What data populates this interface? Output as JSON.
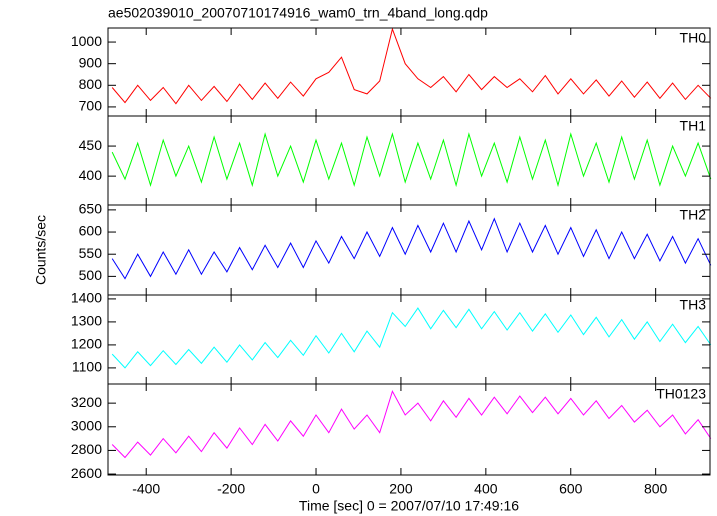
{
  "chart_data": [
    {
      "type": "line",
      "title": "ae502039010_20070710174916_wam0_trn_4band_long.qdp",
      "x": [
        -480,
        -450,
        -420,
        -390,
        -360,
        -330,
        -300,
        -270,
        -240,
        -210,
        -180,
        -150,
        -120,
        -90,
        -60,
        -30,
        0,
        30,
        60,
        90,
        120,
        150,
        180,
        210,
        240,
        270,
        300,
        330,
        360,
        390,
        420,
        450,
        480,
        510,
        540,
        570,
        600,
        630,
        660,
        690,
        720,
        750,
        780,
        810,
        840,
        870,
        900,
        930
      ],
      "series": [
        {
          "name": "TH0",
          "color": "#ff0000",
          "values": [
            790,
            720,
            800,
            730,
            790,
            715,
            800,
            730,
            795,
            725,
            805,
            735,
            810,
            740,
            815,
            750,
            830,
            860,
            930,
            780,
            760,
            820,
            1060,
            900,
            830,
            790,
            840,
            770,
            850,
            780,
            840,
            790,
            830,
            770,
            845,
            760,
            830,
            760,
            825,
            750,
            820,
            745,
            815,
            740,
            810,
            735,
            800,
            740
          ]
        }
      ],
      "xlim": [
        -490,
        928
      ],
      "xticks": [
        -400,
        -200,
        0,
        200,
        400,
        600,
        800
      ],
      "ylim": [
        658,
        1065
      ],
      "yticks": [
        700,
        800,
        900,
        1000
      ]
    },
    {
      "type": "line",
      "x": [
        -480,
        -450,
        -420,
        -390,
        -360,
        -330,
        -300,
        -270,
        -240,
        -210,
        -180,
        -150,
        -120,
        -90,
        -60,
        -30,
        0,
        30,
        60,
        90,
        120,
        150,
        180,
        210,
        240,
        270,
        300,
        330,
        360,
        390,
        420,
        450,
        480,
        510,
        540,
        570,
        600,
        630,
        660,
        690,
        720,
        750,
        780,
        810,
        840,
        870,
        900,
        930
      ],
      "series": [
        {
          "name": "TH1",
          "color": "#00ff00",
          "values": [
            440,
            395,
            455,
            385,
            460,
            400,
            450,
            390,
            465,
            395,
            455,
            385,
            470,
            400,
            450,
            390,
            460,
            395,
            455,
            385,
            465,
            400,
            470,
            390,
            455,
            395,
            460,
            385,
            470,
            400,
            455,
            390,
            465,
            395,
            460,
            385,
            470,
            400,
            455,
            390,
            465,
            395,
            460,
            385,
            450,
            400,
            455,
            395
          ]
        }
      ],
      "xlim": [
        -490,
        928
      ],
      "xticks": [
        -400,
        -200,
        0,
        200,
        400,
        600,
        800
      ],
      "ylim": [
        352,
        500
      ],
      "yticks": [
        400,
        450
      ]
    },
    {
      "type": "line",
      "ylabel": "Counts/sec",
      "x": [
        -480,
        -450,
        -420,
        -390,
        -360,
        -330,
        -300,
        -270,
        -240,
        -210,
        -180,
        -150,
        -120,
        -90,
        -60,
        -30,
        0,
        30,
        60,
        90,
        120,
        150,
        180,
        210,
        240,
        270,
        300,
        330,
        360,
        390,
        420,
        450,
        480,
        510,
        540,
        570,
        600,
        630,
        660,
        690,
        720,
        750,
        780,
        810,
        840,
        870,
        900,
        930
      ],
      "series": [
        {
          "name": "TH2",
          "color": "#0000ff",
          "values": [
            540,
            495,
            550,
            500,
            555,
            505,
            560,
            505,
            555,
            510,
            565,
            515,
            570,
            520,
            575,
            520,
            580,
            530,
            590,
            540,
            600,
            545,
            610,
            550,
            615,
            555,
            620,
            555,
            625,
            560,
            630,
            555,
            620,
            555,
            615,
            550,
            610,
            545,
            605,
            540,
            600,
            540,
            595,
            535,
            590,
            530,
            585,
            525
          ]
        }
      ],
      "xlim": [
        -490,
        928
      ],
      "xticks": [
        -400,
        -200,
        0,
        200,
        400,
        600,
        800
      ],
      "ylim": [
        458,
        661
      ],
      "yticks": [
        500,
        550,
        600,
        650
      ]
    },
    {
      "type": "line",
      "x": [
        -480,
        -450,
        -420,
        -390,
        -360,
        -330,
        -300,
        -270,
        -240,
        -210,
        -180,
        -150,
        -120,
        -90,
        -60,
        -30,
        0,
        30,
        60,
        90,
        120,
        150,
        180,
        210,
        240,
        270,
        300,
        330,
        360,
        390,
        420,
        450,
        480,
        510,
        540,
        570,
        600,
        630,
        660,
        690,
        720,
        750,
        780,
        810,
        840,
        870,
        900,
        930
      ],
      "series": [
        {
          "name": "TH3",
          "color": "#00ffff",
          "values": [
            1160,
            1100,
            1170,
            1110,
            1175,
            1115,
            1180,
            1120,
            1190,
            1125,
            1200,
            1135,
            1210,
            1145,
            1220,
            1155,
            1240,
            1165,
            1250,
            1170,
            1260,
            1190,
            1340,
            1280,
            1360,
            1270,
            1350,
            1275,
            1355,
            1270,
            1345,
            1265,
            1340,
            1260,
            1335,
            1255,
            1330,
            1245,
            1320,
            1235,
            1310,
            1225,
            1300,
            1215,
            1290,
            1210,
            1280,
            1200
          ]
        }
      ],
      "xlim": [
        -490,
        928
      ],
      "xticks": [
        -400,
        -200,
        0,
        200,
        400,
        600,
        800
      ],
      "ylim": [
        1030,
        1417
      ],
      "yticks": [
        1100,
        1200,
        1300,
        1400
      ]
    },
    {
      "type": "line",
      "xlabel": "Time [sec] 0 = 2007/07/10 17:49:16",
      "x": [
        -480,
        -450,
        -420,
        -390,
        -360,
        -330,
        -300,
        -270,
        -240,
        -210,
        -180,
        -150,
        -120,
        -90,
        -60,
        -30,
        0,
        30,
        60,
        90,
        120,
        150,
        180,
        210,
        240,
        270,
        300,
        330,
        360,
        390,
        420,
        450,
        480,
        510,
        540,
        570,
        600,
        630,
        660,
        690,
        720,
        750,
        780,
        810,
        840,
        870,
        900,
        930
      ],
      "series": [
        {
          "name": "TH0123",
          "color": "#ff00ff",
          "values": [
            2850,
            2740,
            2870,
            2760,
            2900,
            2780,
            2920,
            2790,
            2950,
            2820,
            2990,
            2850,
            3020,
            2880,
            3050,
            2920,
            3100,
            2950,
            3150,
            2980,
            3100,
            2950,
            3300,
            3100,
            3200,
            3050,
            3220,
            3080,
            3240,
            3100,
            3250,
            3110,
            3260,
            3120,
            3250,
            3110,
            3240,
            3100,
            3220,
            3070,
            3180,
            3040,
            3140,
            3000,
            3100,
            2940,
            3060,
            2900
          ]
        }
      ],
      "xlim": [
        -490,
        928
      ],
      "xticks": [
        -400,
        -200,
        0,
        200,
        400,
        600,
        800
      ],
      "ylim": [
        2592,
        3362
      ],
      "yticks": [
        2600,
        2800,
        3000,
        3200
      ]
    }
  ]
}
